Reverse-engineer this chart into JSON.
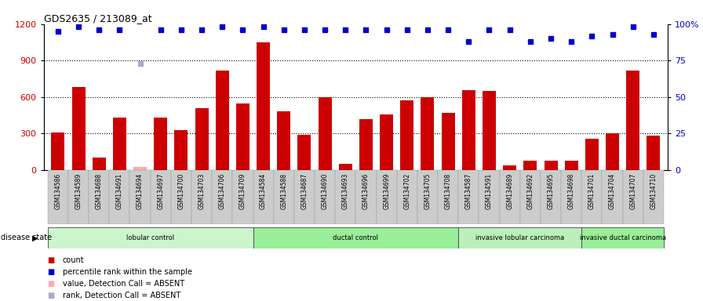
{
  "title": "GDS2635 / 213089_at",
  "samples": [
    "GSM134586",
    "GSM134589",
    "GSM134688",
    "GSM134691",
    "GSM134694",
    "GSM134697",
    "GSM134700",
    "GSM134703",
    "GSM134706",
    "GSM134709",
    "GSM134584",
    "GSM134588",
    "GSM134687",
    "GSM134690",
    "GSM134693",
    "GSM134696",
    "GSM134699",
    "GSM134702",
    "GSM134705",
    "GSM134708",
    "GSM134587",
    "GSM134591",
    "GSM134689",
    "GSM134692",
    "GSM134695",
    "GSM134698",
    "GSM134701",
    "GSM134704",
    "GSM134707",
    "GSM134710"
  ],
  "counts": [
    310,
    680,
    100,
    430,
    25,
    430,
    330,
    510,
    820,
    550,
    1050,
    480,
    290,
    600,
    50,
    420,
    460,
    570,
    600,
    470,
    660,
    650,
    40,
    80,
    75,
    80,
    255,
    300,
    820,
    285
  ],
  "absent_count_indices": [
    4
  ],
  "ranks_pct": [
    95,
    98,
    96,
    96,
    null,
    96,
    96,
    96,
    98,
    96,
    98,
    96,
    96,
    96,
    96,
    96,
    96,
    96,
    96,
    96,
    88,
    96,
    96,
    88,
    90,
    88,
    92,
    93,
    98,
    93
  ],
  "absent_rank_indices": [
    4
  ],
  "absent_rank_values_pct": [
    73
  ],
  "disease_groups": [
    {
      "label": "lobular control",
      "start": 0,
      "end": 10,
      "color": "#ccf5cc"
    },
    {
      "label": "ductal control",
      "start": 10,
      "end": 20,
      "color": "#99ee99"
    },
    {
      "label": "invasive lobular carcinoma",
      "start": 20,
      "end": 26,
      "color": "#bbf0bb"
    },
    {
      "label": "invasive ductal carcinoma",
      "start": 26,
      "end": 30,
      "color": "#99ee99"
    }
  ],
  "ylim_left": [
    0,
    1200
  ],
  "ylim_right": [
    0,
    100
  ],
  "yticks_left": [
    0,
    300,
    600,
    900,
    1200
  ],
  "yticks_right": [
    0,
    25,
    50,
    75,
    100
  ],
  "bar_color": "#cc0000",
  "dot_color": "#0000cc",
  "absent_bar_color": "#ffaaaa",
  "absent_dot_color": "#aaaacc",
  "hgrid_values": [
    300,
    600,
    900
  ],
  "legend": [
    {
      "color": "#cc0000",
      "label": "count"
    },
    {
      "color": "#0000cc",
      "label": "percentile rank within the sample"
    },
    {
      "color": "#ffaaaa",
      "label": "value, Detection Call = ABSENT"
    },
    {
      "color": "#aaaacc",
      "label": "rank, Detection Call = ABSENT"
    }
  ],
  "disease_state_label": "disease state"
}
